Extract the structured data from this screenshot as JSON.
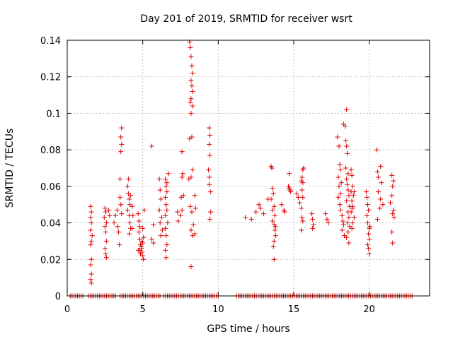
{
  "chart_data": {
    "type": "scatter",
    "title": "Day 201 of 2019, SRMTID for receiver wsrt",
    "xlabel": "GPS time / hours",
    "ylabel": "SRMTID / TECUs",
    "xlim": [
      0,
      24
    ],
    "ylim": [
      0,
      0.14
    ],
    "xticks": [
      0,
      5,
      10,
      15,
      20
    ],
    "yticks": [
      0,
      0.02,
      0.04,
      0.06,
      0.08,
      0.1,
      0.12,
      0.14
    ],
    "xtick_labels": [
      "0",
      "5",
      "10",
      "15",
      "20"
    ],
    "ytick_labels": [
      "0",
      "0.02",
      "0.04",
      "0.06",
      "0.08",
      "0.1",
      "0.12",
      "0.14"
    ],
    "grid": true,
    "marker": "+",
    "color": "#e00000",
    "series": [
      {
        "name": "SRMTID",
        "points": [
          [
            1.55,
            0.049
          ],
          [
            1.6,
            0.046
          ],
          [
            1.55,
            0.043
          ],
          [
            1.6,
            0.04
          ],
          [
            1.55,
            0.036
          ],
          [
            1.65,
            0.033
          ],
          [
            1.6,
            0.03
          ],
          [
            1.55,
            0.028
          ],
          [
            1.6,
            0.02
          ],
          [
            1.55,
            0.017
          ],
          [
            1.6,
            0.012
          ],
          [
            1.55,
            0.009
          ],
          [
            1.6,
            0.007
          ],
          [
            2.5,
            0.048
          ],
          [
            2.55,
            0.046
          ],
          [
            2.45,
            0.043
          ],
          [
            2.6,
            0.04
          ],
          [
            2.5,
            0.038
          ],
          [
            2.55,
            0.035
          ],
          [
            2.6,
            0.03
          ],
          [
            2.5,
            0.026
          ],
          [
            2.55,
            0.023
          ],
          [
            2.6,
            0.021
          ],
          [
            2.75,
            0.047
          ],
          [
            2.8,
            0.044
          ],
          [
            3.1,
            0.04
          ],
          [
            3.2,
            0.044
          ],
          [
            3.3,
            0.047
          ],
          [
            3.35,
            0.038
          ],
          [
            3.4,
            0.035
          ],
          [
            3.45,
            0.028
          ],
          [
            3.5,
            0.054
          ],
          [
            3.55,
            0.05
          ],
          [
            3.5,
            0.064
          ],
          [
            3.55,
            0.079
          ],
          [
            3.6,
            0.083
          ],
          [
            3.55,
            0.087
          ],
          [
            3.6,
            0.092
          ],
          [
            3.6,
            0.045
          ],
          [
            4.0,
            0.06
          ],
          [
            4.05,
            0.056
          ],
          [
            4.1,
            0.053
          ],
          [
            4.15,
            0.05
          ],
          [
            4.0,
            0.047
          ],
          [
            4.1,
            0.044
          ],
          [
            4.15,
            0.04
          ],
          [
            4.2,
            0.037
          ],
          [
            4.1,
            0.034
          ],
          [
            4.05,
            0.064
          ],
          [
            4.2,
            0.055
          ],
          [
            4.3,
            0.049
          ],
          [
            4.35,
            0.044
          ],
          [
            4.3,
            0.037
          ],
          [
            4.7,
            0.045
          ],
          [
            4.75,
            0.041
          ],
          [
            4.8,
            0.038
          ],
          [
            4.75,
            0.035
          ],
          [
            4.8,
            0.031
          ],
          [
            4.85,
            0.028
          ],
          [
            4.9,
            0.026
          ],
          [
            4.95,
            0.024
          ],
          [
            5.0,
            0.022
          ],
          [
            5.05,
            0.02
          ],
          [
            4.8,
            0.025
          ],
          [
            4.9,
            0.027
          ],
          [
            5.0,
            0.029
          ],
          [
            5.05,
            0.032
          ],
          [
            5.1,
            0.047
          ],
          [
            5.0,
            0.037
          ],
          [
            4.7,
            0.025
          ],
          [
            4.85,
            0.023
          ],
          [
            4.95,
            0.03
          ],
          [
            5.6,
            0.082
          ],
          [
            5.7,
            0.039
          ],
          [
            5.6,
            0.031
          ],
          [
            5.7,
            0.029
          ],
          [
            6.1,
            0.064
          ],
          [
            6.15,
            0.058
          ],
          [
            6.2,
            0.053
          ],
          [
            6.1,
            0.047
          ],
          [
            6.25,
            0.043
          ],
          [
            6.15,
            0.04
          ],
          [
            6.3,
            0.036
          ],
          [
            6.2,
            0.033
          ],
          [
            6.5,
            0.064
          ],
          [
            6.55,
            0.06
          ],
          [
            6.6,
            0.057
          ],
          [
            6.5,
            0.054
          ],
          [
            6.55,
            0.05
          ],
          [
            6.6,
            0.047
          ],
          [
            6.5,
            0.044
          ],
          [
            6.65,
            0.04
          ],
          [
            6.5,
            0.037
          ],
          [
            6.55,
            0.033
          ],
          [
            6.6,
            0.028
          ],
          [
            6.5,
            0.025
          ],
          [
            6.55,
            0.021
          ],
          [
            6.7,
            0.067
          ],
          [
            6.6,
            0.062
          ],
          [
            7.3,
            0.046
          ],
          [
            7.5,
            0.044
          ],
          [
            7.35,
            0.041
          ],
          [
            7.6,
            0.079
          ],
          [
            7.65,
            0.067
          ],
          [
            7.6,
            0.065
          ],
          [
            7.55,
            0.054
          ],
          [
            7.7,
            0.055
          ],
          [
            7.6,
            0.047
          ],
          [
            8.1,
            0.139
          ],
          [
            8.15,
            0.136
          ],
          [
            8.2,
            0.131
          ],
          [
            8.25,
            0.126
          ],
          [
            8.3,
            0.122
          ],
          [
            8.2,
            0.118
          ],
          [
            8.25,
            0.115
          ],
          [
            8.3,
            0.112
          ],
          [
            8.2,
            0.108
          ],
          [
            8.15,
            0.106
          ],
          [
            8.3,
            0.104
          ],
          [
            8.2,
            0.1
          ],
          [
            8.25,
            0.087
          ],
          [
            8.1,
            0.086
          ],
          [
            8.3,
            0.069
          ],
          [
            8.2,
            0.065
          ],
          [
            8.15,
            0.049
          ],
          [
            8.25,
            0.046
          ],
          [
            8.35,
            0.039
          ],
          [
            8.2,
            0.036
          ],
          [
            8.3,
            0.033
          ],
          [
            8.45,
            0.055
          ],
          [
            8.5,
            0.048
          ],
          [
            8.45,
            0.034
          ],
          [
            8.2,
            0.016
          ],
          [
            8.05,
            0.064
          ],
          [
            9.4,
            0.092
          ],
          [
            9.45,
            0.088
          ],
          [
            9.4,
            0.083
          ],
          [
            9.45,
            0.077
          ],
          [
            9.4,
            0.061
          ],
          [
            9.5,
            0.046
          ],
          [
            9.45,
            0.042
          ],
          [
            9.5,
            0.057
          ],
          [
            9.35,
            0.069
          ],
          [
            9.4,
            0.065
          ],
          [
            11.8,
            0.043
          ],
          [
            12.2,
            0.042
          ],
          [
            12.5,
            0.046
          ],
          [
            12.7,
            0.05
          ],
          [
            12.8,
            0.048
          ],
          [
            13.0,
            0.045
          ],
          [
            13.3,
            0.053
          ],
          [
            13.5,
            0.071
          ],
          [
            13.55,
            0.07
          ],
          [
            13.6,
            0.059
          ],
          [
            13.65,
            0.056
          ],
          [
            13.5,
            0.053
          ],
          [
            13.7,
            0.049
          ],
          [
            13.6,
            0.047
          ],
          [
            13.75,
            0.044
          ],
          [
            13.6,
            0.041
          ],
          [
            13.7,
            0.039
          ],
          [
            13.75,
            0.036
          ],
          [
            13.8,
            0.033
          ],
          [
            13.7,
            0.03
          ],
          [
            13.65,
            0.027
          ],
          [
            13.7,
            0.02
          ],
          [
            13.8,
            0.038
          ],
          [
            14.2,
            0.05
          ],
          [
            14.35,
            0.047
          ],
          [
            14.4,
            0.046
          ],
          [
            14.7,
            0.067
          ],
          [
            14.65,
            0.06
          ],
          [
            14.7,
            0.059
          ],
          [
            14.75,
            0.058
          ],
          [
            14.8,
            0.057
          ],
          [
            15.2,
            0.056
          ],
          [
            15.3,
            0.054
          ],
          [
            15.4,
            0.051
          ],
          [
            15.5,
            0.063
          ],
          [
            15.55,
            0.065
          ],
          [
            15.6,
            0.069
          ],
          [
            15.65,
            0.07
          ],
          [
            15.6,
            0.062
          ],
          [
            15.55,
            0.058
          ],
          [
            15.6,
            0.054
          ],
          [
            15.5,
            0.048
          ],
          [
            15.55,
            0.043
          ],
          [
            15.6,
            0.041
          ],
          [
            15.5,
            0.036
          ],
          [
            16.2,
            0.045
          ],
          [
            16.25,
            0.042
          ],
          [
            16.3,
            0.039
          ],
          [
            16.25,
            0.037
          ],
          [
            17.1,
            0.045
          ],
          [
            17.2,
            0.042
          ],
          [
            17.3,
            0.04
          ],
          [
            17.9,
            0.087
          ],
          [
            18.0,
            0.082
          ],
          [
            18.05,
            0.072
          ],
          [
            18.1,
            0.069
          ],
          [
            17.95,
            0.065
          ],
          [
            18.15,
            0.062
          ],
          [
            18.0,
            0.06
          ],
          [
            18.1,
            0.056
          ],
          [
            17.95,
            0.054
          ],
          [
            18.05,
            0.05
          ],
          [
            18.1,
            0.047
          ],
          [
            18.2,
            0.044
          ],
          [
            18.25,
            0.041
          ],
          [
            18.3,
            0.039
          ],
          [
            18.2,
            0.036
          ],
          [
            18.35,
            0.033
          ],
          [
            18.3,
            0.094
          ],
          [
            18.4,
            0.093
          ],
          [
            18.5,
            0.102
          ],
          [
            18.45,
            0.085
          ],
          [
            18.5,
            0.082
          ],
          [
            18.55,
            0.078
          ],
          [
            18.45,
            0.07
          ],
          [
            18.6,
            0.067
          ],
          [
            18.5,
            0.064
          ],
          [
            18.55,
            0.061
          ],
          [
            18.6,
            0.058
          ],
          [
            18.65,
            0.055
          ],
          [
            18.5,
            0.052
          ],
          [
            18.7,
            0.049
          ],
          [
            18.6,
            0.046
          ],
          [
            18.65,
            0.043
          ],
          [
            18.55,
            0.04
          ],
          [
            18.7,
            0.038
          ],
          [
            18.6,
            0.035
          ],
          [
            18.5,
            0.032
          ],
          [
            18.65,
            0.029
          ],
          [
            18.8,
            0.069
          ],
          [
            18.85,
            0.066
          ],
          [
            18.9,
            0.06
          ],
          [
            18.8,
            0.057
          ],
          [
            18.95,
            0.055
          ],
          [
            18.85,
            0.052
          ],
          [
            18.9,
            0.049
          ],
          [
            18.8,
            0.046
          ],
          [
            19.0,
            0.043
          ],
          [
            18.9,
            0.04
          ],
          [
            18.85,
            0.037
          ],
          [
            19.0,
            0.057
          ],
          [
            18.9,
            0.048
          ],
          [
            19.8,
            0.057
          ],
          [
            19.85,
            0.054
          ],
          [
            19.9,
            0.05
          ],
          [
            19.95,
            0.047
          ],
          [
            19.85,
            0.044
          ],
          [
            19.9,
            0.04
          ],
          [
            20.0,
            0.037
          ],
          [
            19.95,
            0.034
          ],
          [
            20.0,
            0.031
          ],
          [
            19.9,
            0.028
          ],
          [
            19.95,
            0.026
          ],
          [
            20.0,
            0.023
          ],
          [
            20.05,
            0.038
          ],
          [
            20.5,
            0.08
          ],
          [
            20.55,
            0.068
          ],
          [
            20.6,
            0.065
          ],
          [
            20.75,
            0.071
          ],
          [
            20.8,
            0.062
          ],
          [
            20.6,
            0.057
          ],
          [
            20.75,
            0.053
          ],
          [
            20.9,
            0.05
          ],
          [
            20.7,
            0.048
          ],
          [
            20.55,
            0.042
          ],
          [
            21.5,
            0.066
          ],
          [
            21.6,
            0.063
          ],
          [
            21.55,
            0.06
          ],
          [
            21.5,
            0.055
          ],
          [
            21.6,
            0.047
          ],
          [
            21.55,
            0.045
          ],
          [
            21.65,
            0.043
          ],
          [
            21.5,
            0.035
          ],
          [
            21.55,
            0.029
          ],
          [
            21.4,
            0.051
          ]
        ],
        "zero_intervals": [
          [
            0.2,
            1.05
          ],
          [
            1.4,
            3.3
          ],
          [
            3.5,
            6.25
          ],
          [
            6.4,
            10.1
          ],
          [
            11.2,
            22.85
          ]
        ]
      }
    ]
  }
}
